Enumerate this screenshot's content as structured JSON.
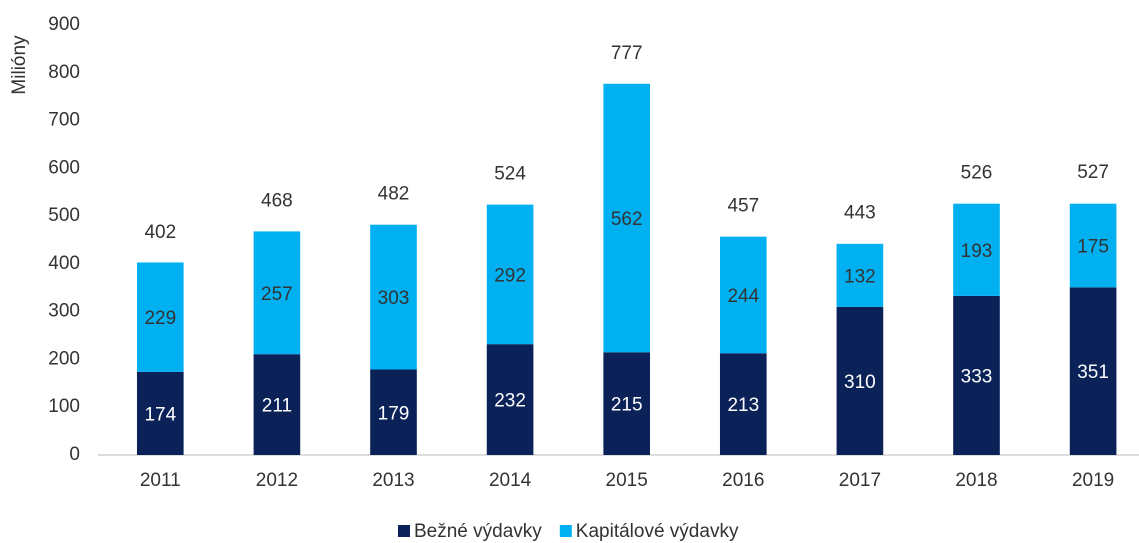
{
  "chart_data": {
    "type": "stacked_bar",
    "y_label": "Milióny",
    "categories": [
      "2011",
      "2012",
      "2013",
      "2014",
      "2015",
      "2016",
      "2017",
      "2018",
      "2019"
    ],
    "series": [
      {
        "name": "Bežné výdavky",
        "color": "#0b2259",
        "values": [
          174,
          211,
          179,
          232,
          215,
          213,
          310,
          333,
          351
        ]
      },
      {
        "name": "Kapitálové výdavky",
        "color": "#00b0f0",
        "values": [
          229,
          257,
          303,
          292,
          562,
          244,
          132,
          193,
          175
        ]
      }
    ],
    "totals": [
      402,
      468,
      482,
      524,
      777,
      457,
      443,
      526,
      527
    ],
    "ylim": [
      0,
      900
    ],
    "yticks": [
      0,
      100,
      200,
      300,
      400,
      500,
      600,
      700,
      800,
      900
    ],
    "grid": false,
    "legend": "bottom"
  }
}
